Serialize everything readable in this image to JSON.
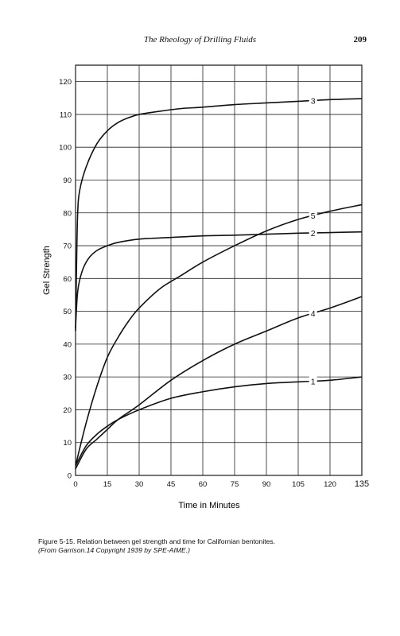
{
  "header": {
    "title": "The Rheology of Drilling Fluids",
    "page_number": "209"
  },
  "caption": {
    "line1": "Figure 5-15. Relation between gel strength and time for Californian bentonites.",
    "line2": "(From Garrison.14 Copyright 1939 by SPE-AIME.)"
  },
  "chart_data": {
    "type": "line",
    "title": "",
    "xlabel": "Time in Minutes",
    "ylabel": "Gel Strength",
    "xlim": [
      0,
      135
    ],
    "ylim": [
      0,
      125
    ],
    "xticks": [
      0,
      15,
      30,
      45,
      60,
      75,
      90,
      105,
      120,
      135
    ],
    "yticks": [
      0,
      10,
      20,
      30,
      40,
      50,
      60,
      70,
      80,
      90,
      100,
      110,
      120
    ],
    "grid": true,
    "series": [
      {
        "name": "3",
        "points": [
          [
            0,
            44
          ],
          [
            0.5,
            65
          ],
          [
            1,
            80
          ],
          [
            2,
            87
          ],
          [
            5,
            94
          ],
          [
            10,
            101
          ],
          [
            15,
            105
          ],
          [
            20,
            107.5
          ],
          [
            25,
            109
          ],
          [
            30,
            110
          ],
          [
            40,
            111
          ],
          [
            50,
            111.8
          ],
          [
            60,
            112.2
          ],
          [
            75,
            113
          ],
          [
            90,
            113.5
          ],
          [
            105,
            114
          ],
          [
            120,
            114.5
          ],
          [
            135,
            114.8
          ]
        ]
      },
      {
        "name": "5",
        "points": [
          [
            0,
            3
          ],
          [
            5,
            16
          ],
          [
            10,
            27
          ],
          [
            15,
            36
          ],
          [
            20,
            42
          ],
          [
            25,
            47
          ],
          [
            30,
            51
          ],
          [
            40,
            57
          ],
          [
            50,
            61
          ],
          [
            60,
            65
          ],
          [
            75,
            70
          ],
          [
            90,
            74.5
          ],
          [
            105,
            78
          ],
          [
            120,
            80.5
          ],
          [
            135,
            82.5
          ]
        ]
      },
      {
        "name": "2",
        "points": [
          [
            0,
            45
          ],
          [
            1,
            56
          ],
          [
            3,
            62
          ],
          [
            6,
            66
          ],
          [
            10,
            68.5
          ],
          [
            15,
            70
          ],
          [
            20,
            71
          ],
          [
            30,
            72
          ],
          [
            45,
            72.5
          ],
          [
            60,
            73
          ],
          [
            75,
            73.2
          ],
          [
            90,
            73.5
          ],
          [
            105,
            73.8
          ],
          [
            120,
            74
          ],
          [
            135,
            74.2
          ]
        ]
      },
      {
        "name": "4",
        "points": [
          [
            0,
            2
          ],
          [
            5,
            8
          ],
          [
            10,
            11
          ],
          [
            15,
            14
          ],
          [
            20,
            17
          ],
          [
            30,
            21.5
          ],
          [
            45,
            29
          ],
          [
            60,
            35
          ],
          [
            75,
            40
          ],
          [
            90,
            44
          ],
          [
            105,
            48
          ],
          [
            120,
            51
          ],
          [
            135,
            54.5
          ]
        ]
      },
      {
        "name": "1",
        "points": [
          [
            0,
            3
          ],
          [
            5,
            9
          ],
          [
            10,
            12.5
          ],
          [
            15,
            15
          ],
          [
            20,
            17
          ],
          [
            30,
            20
          ],
          [
            45,
            23.5
          ],
          [
            60,
            25.5
          ],
          [
            75,
            27
          ],
          [
            90,
            28
          ],
          [
            105,
            28.5
          ],
          [
            120,
            29
          ],
          [
            135,
            30
          ]
        ]
      }
    ]
  }
}
